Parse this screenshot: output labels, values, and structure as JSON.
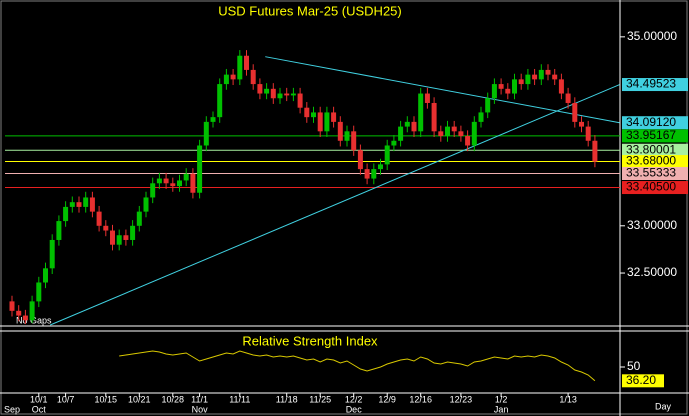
{
  "chart_data": {
    "type": "candlestick",
    "title": "USD Futures Mar-25 (USDH25)",
    "note": "No Gaps",
    "period": "Day",
    "categories": [
      null,
      null,
      null,
      null,
      "10/1",
      null,
      null,
      null,
      "10/7",
      null,
      null,
      null,
      null,
      null,
      "10/15",
      null,
      null,
      null,
      null,
      "10/21",
      null,
      null,
      null,
      null,
      "10/28",
      null,
      null,
      null,
      "11/1",
      null,
      null,
      null,
      null,
      null,
      "11/11",
      null,
      null,
      null,
      null,
      null,
      null,
      "11/18",
      null,
      null,
      null,
      null,
      "11/25",
      null,
      null,
      null,
      null,
      "12/2",
      null,
      null,
      null,
      null,
      "12/9",
      null,
      null,
      null,
      null,
      "12/16",
      null,
      null,
      null,
      null,
      null,
      "12/23",
      null,
      null,
      null,
      null,
      null,
      "1/2",
      null,
      null,
      null,
      null,
      null,
      null,
      null,
      null,
      null,
      "1/13",
      null,
      null,
      null,
      null
    ],
    "month_categories": [
      "Sep",
      null,
      null,
      null,
      "Oct",
      null,
      null,
      null,
      null,
      null,
      null,
      null,
      null,
      null,
      null,
      null,
      null,
      null,
      null,
      null,
      null,
      null,
      null,
      null,
      null,
      null,
      null,
      null,
      "Nov",
      null,
      null,
      null,
      null,
      null,
      null,
      null,
      null,
      null,
      null,
      null,
      null,
      null,
      null,
      null,
      null,
      null,
      null,
      null,
      null,
      null,
      null,
      "Dec",
      null,
      null,
      null,
      null,
      null,
      null,
      null,
      null,
      null,
      null,
      null,
      null,
      null,
      null,
      null,
      null,
      null,
      null,
      null,
      null,
      null,
      "Jan",
      null,
      null,
      null,
      null,
      null,
      null,
      null,
      null,
      null,
      null,
      null,
      null,
      null,
      null
    ],
    "open": [
      32.2,
      32.1,
      32.05,
      32.0,
      32.2,
      32.4,
      32.55,
      32.85,
      33.05,
      33.2,
      33.25,
      33.2,
      33.3,
      33.15,
      33.0,
      32.95,
      32.8,
      32.9,
      32.85,
      33.0,
      33.15,
      33.3,
      33.45,
      33.5,
      33.45,
      33.42,
      33.48,
      33.55,
      33.35,
      33.85,
      34.1,
      34.15,
      34.5,
      34.6,
      34.55,
      34.8,
      34.65,
      34.5,
      34.4,
      34.45,
      34.35,
      34.4,
      34.38,
      34.4,
      34.25,
      34.15,
      34.2,
      34.0,
      34.2,
      34.1,
      33.9,
      34.0,
      33.8,
      33.6,
      33.5,
      33.6,
      33.65,
      33.85,
      33.9,
      34.05,
      34.1,
      34.0,
      34.4,
      34.3,
      34.0,
      33.95,
      34.05,
      34.0,
      33.95,
      33.85,
      34.1,
      34.2,
      34.35,
      34.5,
      34.45,
      34.4,
      34.55,
      34.5,
      34.6,
      34.55,
      34.65,
      34.6,
      34.55,
      34.4,
      34.3,
      34.1,
      34.05,
      33.9
    ],
    "high": [
      32.26,
      32.16,
      32.11,
      32.26,
      32.46,
      32.61,
      32.91,
      33.11,
      33.26,
      33.31,
      33.31,
      33.36,
      33.36,
      33.21,
      33.06,
      33.01,
      32.96,
      32.96,
      33.06,
      33.21,
      33.36,
      33.51,
      33.56,
      33.56,
      33.51,
      33.54,
      33.61,
      33.61,
      33.91,
      34.16,
      34.21,
      34.56,
      34.66,
      34.66,
      34.86,
      34.86,
      34.71,
      34.56,
      34.51,
      34.51,
      34.46,
      34.46,
      34.46,
      34.46,
      34.31,
      34.26,
      34.26,
      34.26,
      34.26,
      34.16,
      34.06,
      34.06,
      33.86,
      33.66,
      33.66,
      33.71,
      33.91,
      33.96,
      34.11,
      34.16,
      34.16,
      34.46,
      34.46,
      34.36,
      34.06,
      34.11,
      34.11,
      34.06,
      34.01,
      34.16,
      34.26,
      34.41,
      34.56,
      34.56,
      34.51,
      34.61,
      34.61,
      34.66,
      34.66,
      34.71,
      34.71,
      34.66,
      34.61,
      34.46,
      34.36,
      34.16,
      34.11,
      33.96
    ],
    "low": [
      32.04,
      31.99,
      31.96,
      31.97,
      32.14,
      32.34,
      32.49,
      32.79,
      32.99,
      33.14,
      33.14,
      33.14,
      33.09,
      32.94,
      32.89,
      32.74,
      32.74,
      32.79,
      32.79,
      32.94,
      33.09,
      33.24,
      33.39,
      33.39,
      33.36,
      33.36,
      33.42,
      33.29,
      33.29,
      33.79,
      34.04,
      34.09,
      34.44,
      34.49,
      34.49,
      34.59,
      34.44,
      34.34,
      34.34,
      34.29,
      34.29,
      34.32,
      34.32,
      34.19,
      34.09,
      34.09,
      33.94,
      33.94,
      34.04,
      33.84,
      33.84,
      33.74,
      33.54,
      33.44,
      33.44,
      33.54,
      33.59,
      33.79,
      33.84,
      33.99,
      33.94,
      33.94,
      34.24,
      33.94,
      33.89,
      33.89,
      33.94,
      33.89,
      33.79,
      33.79,
      34.04,
      34.14,
      34.29,
      34.39,
      34.34,
      34.34,
      34.44,
      34.44,
      34.49,
      34.49,
      34.54,
      34.49,
      34.34,
      34.24,
      34.04,
      33.99,
      33.84,
      33.62
    ],
    "close": [
      32.1,
      32.05,
      32.0,
      32.2,
      32.4,
      32.55,
      32.85,
      33.05,
      33.2,
      33.25,
      33.2,
      33.3,
      33.15,
      33.0,
      32.95,
      32.8,
      32.9,
      32.85,
      33.0,
      33.15,
      33.3,
      33.45,
      33.5,
      33.45,
      33.42,
      33.48,
      33.55,
      33.35,
      33.85,
      34.1,
      34.15,
      34.5,
      34.6,
      34.55,
      34.8,
      34.65,
      34.5,
      34.4,
      34.45,
      34.35,
      34.4,
      34.38,
      34.4,
      34.25,
      34.15,
      34.2,
      34.0,
      34.2,
      34.1,
      33.9,
      34.0,
      33.8,
      33.6,
      33.5,
      33.6,
      33.65,
      33.85,
      33.9,
      34.05,
      34.1,
      34.0,
      34.4,
      34.3,
      34.0,
      33.95,
      34.05,
      34.0,
      33.95,
      33.85,
      34.1,
      34.2,
      34.35,
      34.5,
      34.45,
      34.4,
      34.55,
      34.5,
      34.6,
      34.55,
      34.65,
      34.6,
      34.55,
      34.4,
      34.3,
      34.1,
      34.05,
      33.9,
      33.68
    ],
    "up_color": "#00c000",
    "down_color": "#e83030",
    "ylim": [
      31.95,
      35.39
    ],
    "yticks": [
      {
        "value": 35,
        "label": "35.00000"
      },
      {
        "value": 33,
        "label": "33.00000"
      },
      {
        "value": 32.5,
        "label": "32.50000"
      }
    ],
    "levels": [
      {
        "price": 33.95167,
        "color": "#00c000"
      },
      {
        "price": 33.80001,
        "color": "#a8f0a0"
      },
      {
        "price": 33.68,
        "label": "33.68000",
        "color": "#ffff00"
      },
      {
        "price": 33.55333,
        "color": "#f0b0b0"
      },
      {
        "price": 33.405,
        "label": "33.40500",
        "color": "#e82020"
      }
    ],
    "trendlines": [
      {
        "x": [
          5.7,
          90.7
        ],
        "values": [
          31.95,
          34.49523
        ],
        "color": "#40d0e0"
      },
      {
        "x": [
          37.8,
          90.7
        ],
        "values": [
          34.79,
          34.0912
        ],
        "label": "34.09120",
        "color": "#40d0e0"
      }
    ],
    "rsi": {
      "title": "Relative Strength Index",
      "color": "#d8c800",
      "ylim": [
        25,
        85
      ],
      "yticks": [
        50
      ],
      "values": [
        null,
        null,
        null,
        null,
        null,
        null,
        null,
        null,
        null,
        null,
        null,
        null,
        null,
        null,
        null,
        null,
        61,
        62,
        63,
        64,
        65,
        66,
        65,
        63,
        62,
        63,
        64,
        60,
        56,
        58,
        60,
        62,
        64,
        63,
        66,
        64,
        62,
        61,
        62,
        60,
        61,
        60,
        61,
        59,
        57,
        58,
        55,
        58,
        57,
        54,
        56,
        52,
        48,
        46,
        48,
        50,
        53,
        55,
        57,
        58,
        56,
        60,
        58,
        54,
        53,
        55,
        54,
        53,
        51,
        55,
        56,
        58,
        60,
        59,
        58,
        61,
        60,
        61,
        60,
        62,
        61,
        59,
        55,
        52,
        47,
        45,
        42,
        36.2
      ],
      "last_label": {
        "value": 36.2,
        "label": "36.20"
      }
    }
  }
}
